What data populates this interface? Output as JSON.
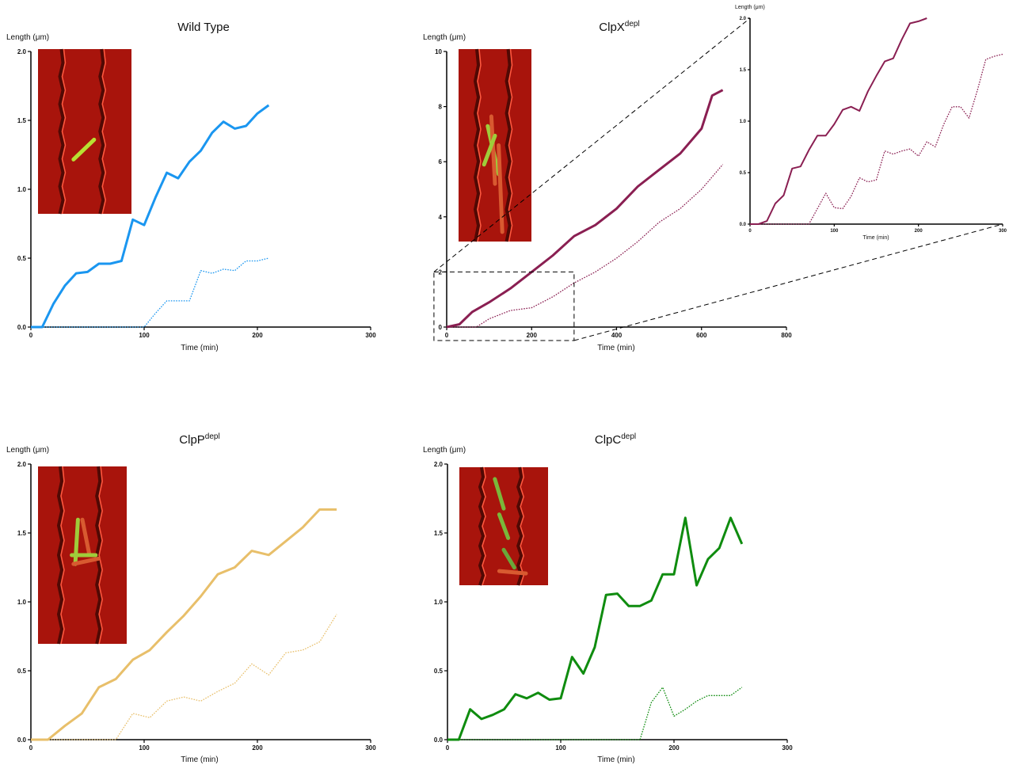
{
  "chart_data": [
    {
      "id": "wt",
      "type": "line",
      "title": "Wild Type",
      "title_sup": "",
      "ylabel": "Length (μm)",
      "xlabel": "Time (min)",
      "xlim": [
        0,
        300
      ],
      "ylim": [
        0,
        2.0
      ],
      "xticks": [
        "0",
        "100",
        "200",
        "300"
      ],
      "yticks": [
        "0.0",
        "0.5",
        "1.0",
        "1.5",
        "2.0"
      ],
      "color": "#1a96f0",
      "series": [
        {
          "style": "solid",
          "x": [
            0,
            10,
            20,
            30,
            40,
            50,
            60,
            70,
            80,
            90,
            100,
            110,
            120,
            130,
            140,
            150,
            160,
            170,
            180,
            190,
            200,
            210
          ],
          "y": [
            0,
            0,
            0.17,
            0.3,
            0.39,
            0.4,
            0.46,
            0.46,
            0.48,
            0.78,
            0.74,
            0.94,
            1.12,
            1.08,
            1.2,
            1.28,
            1.41,
            1.49,
            1.44,
            1.46,
            1.55,
            1.61
          ]
        },
        {
          "style": "dotted",
          "x": [
            0,
            100,
            110,
            120,
            130,
            140,
            150,
            160,
            170,
            180,
            190,
            200,
            210
          ],
          "y": [
            0,
            0,
            0.1,
            0.19,
            0.19,
            0.19,
            0.41,
            0.39,
            0.42,
            0.41,
            0.48,
            0.48,
            0.5
          ]
        }
      ]
    },
    {
      "id": "clpx",
      "type": "line",
      "title": "ClpX",
      "title_sup": "depl",
      "ylabel": "Length (μm)",
      "xlabel": "Time (min)",
      "xlim": [
        0,
        800
      ],
      "ylim": [
        0,
        10
      ],
      "xticks": [
        "0",
        "200",
        "400",
        "600",
        "800"
      ],
      "yticks": [
        "0",
        "2",
        "4",
        "6",
        "8",
        "10"
      ],
      "color": "#8a1f52",
      "series": [
        {
          "style": "solid",
          "x": [
            0,
            30,
            60,
            100,
            150,
            200,
            250,
            300,
            350,
            400,
            450,
            500,
            550,
            600,
            625,
            650
          ],
          "y": [
            0,
            0.1,
            0.55,
            0.9,
            1.4,
            2.0,
            2.6,
            3.3,
            3.7,
            4.3,
            5.1,
            5.7,
            6.3,
            7.2,
            8.4,
            8.6
          ]
        },
        {
          "style": "dotted",
          "x": [
            0,
            70,
            100,
            150,
            200,
            250,
            300,
            350,
            400,
            450,
            500,
            550,
            600,
            650
          ],
          "y": [
            0,
            0,
            0.3,
            0.6,
            0.7,
            1.1,
            1.6,
            2.0,
            2.5,
            3.1,
            3.8,
            4.3,
            5.0,
            5.9
          ]
        }
      ],
      "inset": {
        "ylabel": "Length (μm)",
        "xlabel": "Time (min)",
        "xlim": [
          0,
          300
        ],
        "ylim": [
          0,
          2.0
        ],
        "xticks": [
          "0",
          "100",
          "200",
          "300"
        ],
        "yticks": [
          "0.0",
          "0.5",
          "1.0",
          "1.5",
          "2.0"
        ],
        "series": [
          {
            "style": "solid",
            "x": [
              0,
              10,
              20,
              30,
              40,
              50,
              60,
              70,
              80,
              90,
              100,
              110,
              120,
              130,
              140,
              150,
              160,
              170,
              180,
              190,
              200,
              210
            ],
            "y": [
              0,
              0,
              0.03,
              0.2,
              0.28,
              0.54,
              0.56,
              0.72,
              0.86,
              0.86,
              0.97,
              1.11,
              1.14,
              1.1,
              1.29,
              1.44,
              1.58,
              1.61,
              1.79,
              1.95,
              1.97,
              2.0
            ]
          },
          {
            "style": "dotted",
            "x": [
              0,
              70,
              90,
              100,
              110,
              120,
              130,
              140,
              150,
              160,
              170,
              180,
              190,
              200,
              210,
              220,
              230,
              240,
              250,
              260,
              270,
              280,
              290,
              300
            ],
            "y": [
              0,
              0,
              0.3,
              0.16,
              0.15,
              0.27,
              0.45,
              0.41,
              0.43,
              0.71,
              0.68,
              0.71,
              0.73,
              0.66,
              0.8,
              0.75,
              0.97,
              1.14,
              1.14,
              1.03,
              1.3,
              1.6,
              1.63,
              1.65
            ]
          }
        ]
      }
    },
    {
      "id": "clpp",
      "type": "line",
      "title": "ClpP",
      "title_sup": "depl",
      "ylabel": "Length (μm)",
      "xlabel": "Time (min)",
      "xlim": [
        0,
        300
      ],
      "ylim": [
        0,
        2.0
      ],
      "xticks": [
        "0",
        "100",
        "200",
        "300"
      ],
      "yticks": [
        "0.0",
        "0.5",
        "1.0",
        "1.5",
        "2.0"
      ],
      "color": "#e8bf6a",
      "series": [
        {
          "style": "solid",
          "x": [
            0,
            15,
            30,
            45,
            60,
            75,
            90,
            105,
            120,
            135,
            150,
            165,
            180,
            195,
            210,
            225,
            240,
            255,
            270
          ],
          "y": [
            0,
            0,
            0.1,
            0.19,
            0.38,
            0.44,
            0.58,
            0.65,
            0.78,
            0.9,
            1.04,
            1.2,
            1.25,
            1.37,
            1.34,
            1.44,
            1.54,
            1.67,
            1.67
          ]
        },
        {
          "style": "dotted",
          "x": [
            0,
            75,
            90,
            105,
            120,
            135,
            150,
            165,
            180,
            195,
            210,
            225,
            240,
            255,
            270
          ],
          "y": [
            0,
            0,
            0.19,
            0.16,
            0.28,
            0.31,
            0.28,
            0.35,
            0.41,
            0.55,
            0.47,
            0.63,
            0.65,
            0.71,
            0.91
          ]
        }
      ]
    },
    {
      "id": "clpc",
      "type": "line",
      "title": "ClpC",
      "title_sup": "depl",
      "ylabel": "Length (μm)",
      "xlabel": "Time (min)",
      "xlim": [
        0,
        300
      ],
      "ylim": [
        0,
        2.0
      ],
      "xticks": [
        "0",
        "100",
        "200",
        "300"
      ],
      "yticks": [
        "0.0",
        "0.5",
        "1.0",
        "1.5",
        "2.0"
      ],
      "color": "#0f8c0f",
      "series": [
        {
          "style": "solid",
          "x": [
            0,
            10,
            20,
            30,
            40,
            50,
            60,
            70,
            80,
            90,
            100,
            110,
            120,
            130,
            140,
            150,
            160,
            170,
            180,
            190,
            200,
            210,
            220,
            230,
            240,
            250,
            260
          ],
          "y": [
            0,
            0,
            0.22,
            0.15,
            0.18,
            0.22,
            0.33,
            0.3,
            0.34,
            0.29,
            0.3,
            0.6,
            0.48,
            0.67,
            1.05,
            1.06,
            0.97,
            0.97,
            1.01,
            1.2,
            1.2,
            1.61,
            1.12,
            1.31,
            1.39,
            1.61,
            1.42
          ]
        },
        {
          "style": "dotted",
          "x": [
            0,
            170,
            180,
            190,
            200,
            210,
            220,
            230,
            240,
            250,
            260
          ],
          "y": [
            0,
            0,
            0.27,
            0.38,
            0.17,
            0.22,
            0.28,
            0.32,
            0.32,
            0.32,
            0.38
          ]
        }
      ]
    }
  ]
}
